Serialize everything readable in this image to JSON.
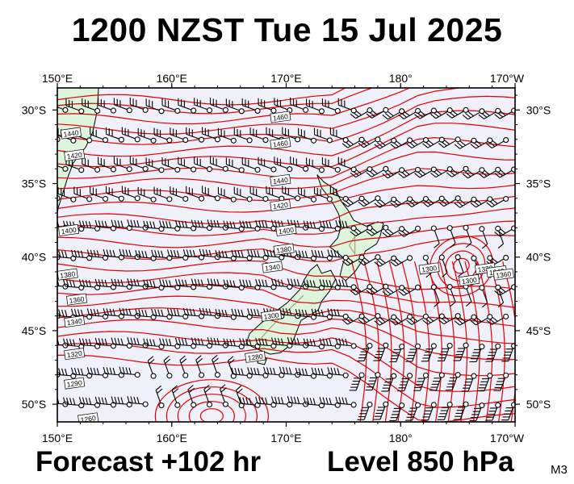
{
  "header": {
    "title": "1200 NZST Tue 15 Jul 2025"
  },
  "footer": {
    "forecast": "Forecast +102 hr",
    "level": "Level 850 hPa",
    "model": "M3"
  },
  "map": {
    "lon_range": [
      150,
      190
    ],
    "lat_range": [
      -51.2,
      -28.5
    ],
    "lon_labels": [
      "150°E",
      "160°E",
      "170°E",
      "180°",
      "170°W"
    ],
    "lat_labels": [
      "30°S",
      "35°S",
      "40°S",
      "45°S",
      "50°S"
    ],
    "contour_labels": [
      {
        "text": "1460",
        "lon": 169.5,
        "lat": -30.5
      },
      {
        "text": "1460",
        "lon": 169.5,
        "lat": -32.3
      },
      {
        "text": "1440",
        "lon": 151.2,
        "lat": -31.6
      },
      {
        "text": "1420",
        "lon": 151.5,
        "lat": -33.1
      },
      {
        "text": "1440",
        "lon": 169.5,
        "lat": -34.8
      },
      {
        "text": "1420",
        "lon": 169.5,
        "lat": -36.5
      },
      {
        "text": "1400",
        "lon": 151.0,
        "lat": -38.2
      },
      {
        "text": "1400",
        "lon": 170.0,
        "lat": -38.2
      },
      {
        "text": "1380",
        "lon": 169.8,
        "lat": -39.5
      },
      {
        "text": "1380",
        "lon": 150.9,
        "lat": -41.2
      },
      {
        "text": "1360",
        "lon": 151.7,
        "lat": -42.9
      },
      {
        "text": "1340",
        "lon": 151.5,
        "lat": -44.4
      },
      {
        "text": "1340",
        "lon": 168.8,
        "lat": -40.7
      },
      {
        "text": "1320",
        "lon": 151.5,
        "lat": -46.6
      },
      {
        "text": "1300",
        "lon": 168.7,
        "lat": -44.0
      },
      {
        "text": "1280",
        "lon": 167.3,
        "lat": -46.8
      },
      {
        "text": "1290",
        "lon": 151.5,
        "lat": -48.6
      },
      {
        "text": "1260",
        "lon": 152.7,
        "lat": -51.0
      },
      {
        "text": "1300",
        "lon": 182.5,
        "lat": -40.8
      },
      {
        "text": "1300",
        "lon": 186.0,
        "lat": -41.6
      },
      {
        "text": "1320",
        "lon": 187.4,
        "lat": -40.8
      },
      {
        "text": "1340",
        "lon": 188.4,
        "lat": -41.0
      },
      {
        "text": "1360",
        "lon": 189.0,
        "lat": -41.2
      }
    ],
    "colors": {
      "ocean": "#f0f0fb",
      "land": "#dcf5dc",
      "contour": "#e00000",
      "land_contour": "#aaa270",
      "barb": "#000000",
      "border": "#000000"
    }
  }
}
